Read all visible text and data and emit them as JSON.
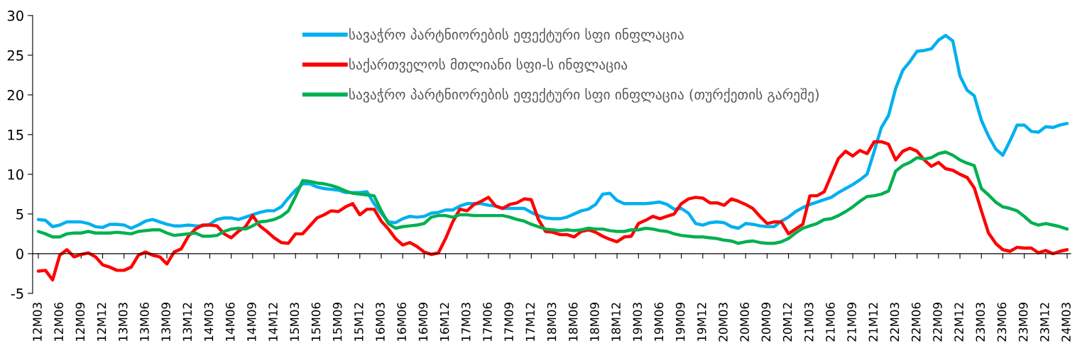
{
  "chart_data": {
    "type": "line",
    "categories": [
      "12M03",
      null,
      null,
      "12M06",
      null,
      null,
      "12M09",
      null,
      null,
      "12M12",
      null,
      null,
      "13M03",
      null,
      null,
      "13M06",
      null,
      null,
      "13M09",
      null,
      null,
      "13M12",
      null,
      null,
      "14M03",
      null,
      null,
      "14M06",
      null,
      null,
      "14M09",
      null,
      null,
      "14M12",
      null,
      null,
      "15M03",
      null,
      null,
      "15M06",
      null,
      null,
      "15M09",
      null,
      null,
      "15M12",
      null,
      null,
      "16M03",
      null,
      null,
      "16M06",
      null,
      null,
      "16M09",
      null,
      null,
      "16M12",
      null,
      null,
      "17M03",
      null,
      null,
      "17M06",
      null,
      null,
      "17M09",
      null,
      null,
      "17M12",
      null,
      null,
      "18M03",
      null,
      null,
      "18M06",
      null,
      null,
      "18M09",
      null,
      null,
      "18M12",
      null,
      null,
      "19M03",
      null,
      null,
      "19M06",
      null,
      null,
      "19M09",
      null,
      null,
      "19M12",
      null,
      null,
      "20M03",
      null,
      null,
      "20M06",
      null,
      null,
      "20M09",
      null,
      null,
      "20M12",
      null,
      null,
      "21M03",
      null,
      null,
      "21M06",
      null,
      null,
      "21M09",
      null,
      null,
      "21M12",
      null,
      null,
      "22M03",
      null,
      null,
      "22M06",
      null,
      null,
      "22M09",
      null,
      null,
      "22M12",
      null,
      null,
      "23M03",
      null,
      null,
      "23M06",
      null,
      null,
      "23M09",
      null,
      null,
      "23M12",
      null,
      null,
      "24M03"
    ],
    "series": [
      {
        "name": "სავაჭრო პარტნიორების ეფექტური სფი ინფლაცია",
        "color": "#00b0f0",
        "values": [
          4.3,
          4.2,
          3.4,
          3.6,
          4.0,
          4.0,
          4.0,
          3.8,
          3.4,
          3.3,
          3.7,
          3.7,
          3.6,
          3.2,
          3.6,
          4.1,
          4.3,
          4.0,
          3.7,
          3.5,
          3.5,
          3.6,
          3.5,
          3.5,
          3.7,
          4.3,
          4.5,
          4.5,
          4.3,
          4.6,
          4.9,
          5.2,
          5.4,
          5.4,
          5.9,
          7.0,
          8.0,
          8.8,
          8.8,
          8.4,
          8.2,
          8.1,
          8.0,
          7.7,
          7.7,
          7.7,
          7.8,
          6.3,
          5.1,
          4.0,
          3.9,
          4.4,
          4.7,
          4.6,
          4.7,
          5.1,
          5.2,
          5.5,
          5.5,
          6.0,
          6.3,
          6.3,
          6.3,
          6.1,
          6.0,
          5.7,
          5.7,
          5.7,
          5.7,
          5.2,
          4.8,
          4.5,
          4.4,
          4.4,
          4.6,
          5.0,
          5.4,
          5.6,
          6.2,
          7.5,
          7.6,
          6.7,
          6.3,
          6.3,
          6.3,
          6.3,
          6.4,
          6.5,
          6.2,
          5.6,
          5.7,
          5.1,
          3.8,
          3.6,
          3.9,
          4.0,
          3.9,
          3.4,
          3.2,
          3.8,
          3.7,
          3.5,
          3.4,
          3.4,
          4.1,
          4.6,
          5.3,
          5.8,
          6.2,
          6.5,
          6.8,
          7.1,
          7.7,
          8.2,
          8.7,
          9.3,
          10.0,
          12.9,
          15.9,
          17.4,
          20.8,
          23.1,
          24.2,
          25.5,
          25.6,
          25.8,
          26.9,
          27.5,
          26.8,
          22.4,
          20.6,
          19.9,
          16.8,
          14.8,
          13.2,
          12.4,
          14.2,
          16.2,
          16.2,
          15.4,
          15.3,
          16.0,
          15.9,
          16.2,
          16.4
        ]
      },
      {
        "name": "საქართველოს მთლიანი სფი-ს ინფლაცია",
        "color": "#ff0000",
        "values": [
          -2.2,
          -2.1,
          -3.3,
          -0.2,
          0.5,
          -0.4,
          -0.1,
          0.1,
          -0.4,
          -1.4,
          -1.7,
          -2.1,
          -2.1,
          -1.7,
          -0.2,
          0.2,
          -0.2,
          -0.4,
          -1.3,
          0.2,
          0.6,
          2.2,
          3.1,
          3.6,
          3.6,
          3.5,
          2.5,
          2.0,
          2.8,
          3.4,
          4.8,
          3.5,
          2.8,
          2.0,
          1.4,
          1.3,
          2.5,
          2.5,
          3.5,
          4.5,
          4.9,
          5.4,
          5.3,
          5.9,
          6.3,
          4.9,
          5.6,
          5.6,
          4.1,
          3.1,
          1.9,
          1.1,
          1.4,
          0.9,
          0.2,
          -0.1,
          0.1,
          1.9,
          4.0,
          5.6,
          5.4,
          6.2,
          6.6,
          7.1,
          6.0,
          5.7,
          6.2,
          6.4,
          6.9,
          6.8,
          4.3,
          2.8,
          2.7,
          2.4,
          2.4,
          2.1,
          2.8,
          3.0,
          2.7,
          2.2,
          1.8,
          1.5,
          2.1,
          2.2,
          3.8,
          4.2,
          4.7,
          4.4,
          4.7,
          5.0,
          6.3,
          6.9,
          7.1,
          7.0,
          6.4,
          6.4,
          6.1,
          6.9,
          6.6,
          6.2,
          5.7,
          4.7,
          3.8,
          4.0,
          4.0,
          2.5,
          3.1,
          3.7,
          7.3,
          7.3,
          7.8,
          9.9,
          12.0,
          12.9,
          12.3,
          13.0,
          12.6,
          14.1,
          14.1,
          13.8,
          11.8,
          12.9,
          13.3,
          12.9,
          11.8,
          11.0,
          11.5,
          10.7,
          10.5,
          10.0,
          9.6,
          8.3,
          5.4,
          2.6,
          1.3,
          0.5,
          0.3,
          0.8,
          0.7,
          0.7,
          0.1,
          0.4,
          0.0,
          0.3,
          0.5
        ]
      },
      {
        "name": "სავაჭრო პარტნიორების ეფექტური სფი ინფლაცია (თურქეთის გარეშე)",
        "color": "#00b050",
        "values": [
          2.8,
          2.5,
          2.1,
          2.1,
          2.5,
          2.6,
          2.6,
          2.8,
          2.6,
          2.6,
          2.6,
          2.7,
          2.6,
          2.5,
          2.8,
          2.9,
          3.0,
          3.0,
          2.6,
          2.3,
          2.4,
          2.5,
          2.6,
          2.2,
          2.2,
          2.3,
          2.8,
          3.1,
          3.2,
          3.1,
          3.5,
          4.0,
          4.1,
          4.3,
          4.7,
          5.4,
          7.2,
          9.2,
          9.1,
          8.9,
          8.8,
          8.6,
          8.3,
          7.9,
          7.6,
          7.5,
          7.4,
          7.3,
          5.4,
          3.8,
          3.2,
          3.4,
          3.5,
          3.6,
          3.8,
          4.6,
          4.8,
          4.8,
          4.6,
          4.9,
          4.9,
          4.8,
          4.8,
          4.8,
          4.8,
          4.8,
          4.6,
          4.3,
          4.1,
          3.7,
          3.4,
          3.1,
          3.0,
          2.9,
          3.0,
          2.9,
          3.0,
          3.2,
          3.1,
          3.1,
          2.9,
          2.8,
          2.8,
          3.0,
          3.0,
          3.2,
          3.1,
          2.9,
          2.8,
          2.5,
          2.3,
          2.2,
          2.1,
          2.1,
          2.0,
          1.9,
          1.7,
          1.6,
          1.3,
          1.5,
          1.6,
          1.4,
          1.3,
          1.3,
          1.5,
          1.9,
          2.6,
          3.2,
          3.5,
          3.8,
          4.3,
          4.4,
          4.8,
          5.3,
          5.9,
          6.6,
          7.2,
          7.3,
          7.5,
          7.9,
          10.4,
          11.1,
          11.5,
          12.1,
          11.9,
          12.1,
          12.6,
          12.8,
          12.4,
          11.8,
          11.4,
          11.1,
          8.2,
          7.4,
          6.5,
          5.9,
          5.7,
          5.4,
          4.7,
          3.9,
          3.6,
          3.8,
          3.6,
          3.4,
          3.1
        ]
      }
    ],
    "ylim": [
      -5,
      30
    ],
    "yticks": [
      -5,
      0,
      5,
      10,
      15,
      20,
      25,
      30
    ],
    "legend": "top"
  }
}
